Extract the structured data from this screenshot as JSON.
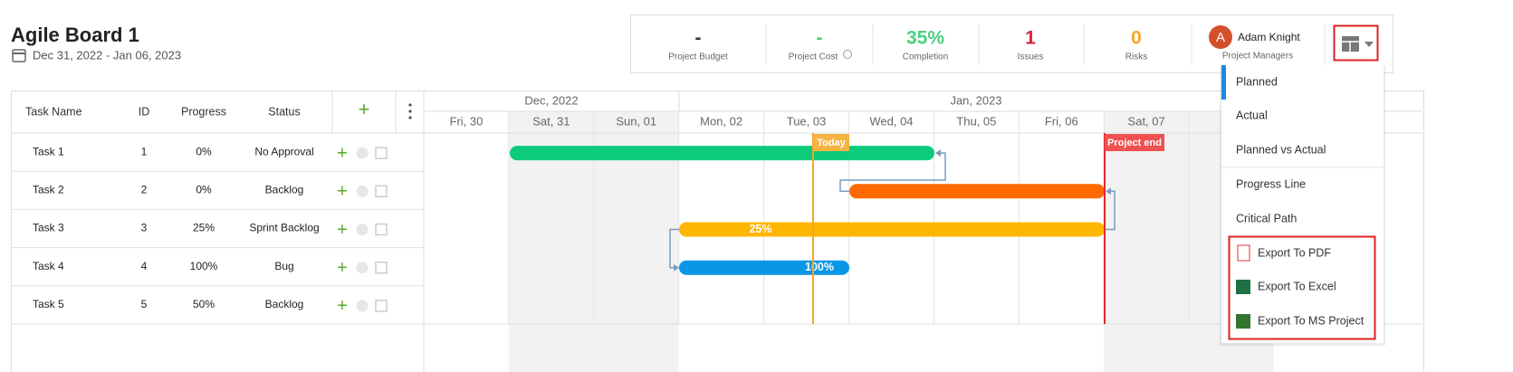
{
  "header": {
    "title": "Agile Board 1",
    "date_range": "Dec 31, 2022 - Jan 06, 2023"
  },
  "stats": [
    {
      "value": "-",
      "label": "Project Budget"
    },
    {
      "value": "-",
      "label": "Project Cost"
    },
    {
      "value": "35%",
      "label": "Completion"
    },
    {
      "value": "1",
      "label": "Issues"
    },
    {
      "value": "0",
      "label": "Risks"
    }
  ],
  "manager": {
    "initial": "A",
    "name": "Adam Knight",
    "label": "Project Managers"
  },
  "table": {
    "columns": [
      "Task Name",
      "ID",
      "Progress",
      "Status"
    ],
    "rows": [
      [
        "Task 1",
        "1",
        "0%",
        "No Approval"
      ],
      [
        "Task 2",
        "2",
        "0%",
        "Backlog"
      ],
      [
        "Task 3",
        "3",
        "25%",
        "Sprint Backlog"
      ],
      [
        "Task 4",
        "4",
        "100%",
        "Bug"
      ],
      [
        "Task 5",
        "5",
        "50%",
        "Backlog"
      ]
    ]
  },
  "gantt": {
    "months": [
      "Dec, 2022",
      "Jan, 2023"
    ],
    "days": [
      "Fri, 30",
      "Sat, 31",
      "Sun, 01",
      "Mon, 02",
      "Tue, 03",
      "Wed, 04",
      "Thu, 05",
      "Fri, 06",
      "Sat, 07"
    ],
    "today": "Today",
    "project_end": "Project end",
    "bar_labels": [
      "25%",
      "100%"
    ]
  },
  "menu": [
    "Planned",
    "Actual",
    "Planned vs Actual",
    "Progress Line",
    "Critical Path",
    "Export To PDF",
    "Export To Excel",
    "Export To MS Project"
  ]
}
